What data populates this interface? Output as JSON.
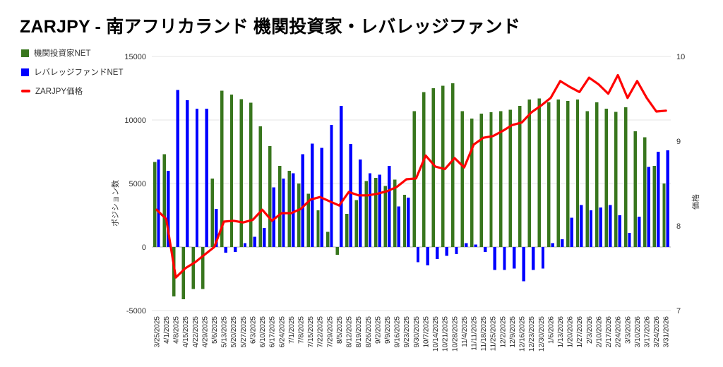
{
  "title": "ZARJPY - 南アフリカランド 機関投資家・レバレッジファンド",
  "legend": {
    "items": [
      {
        "label": "機関投資家NET",
        "color": "#38761d",
        "marker": "square"
      },
      {
        "label": "レバレッジファンドNET",
        "color": "#0000ff",
        "marker": "square"
      },
      {
        "label": "ZARJPY価格",
        "color": "#ff0000",
        "marker": "dash"
      }
    ]
  },
  "chart_data": {
    "type": "combo",
    "grid": true,
    "legend_position": "top-left",
    "categories": [
      "3/25/2025",
      "4/1/2025",
      "4/8/2025",
      "4/15/2025",
      "4/22/2025",
      "4/29/2025",
      "5/6/2025",
      "5/13/2025",
      "5/20/2025",
      "5/27/2025",
      "6/3/2025",
      "6/10/2025",
      "6/17/2025",
      "6/24/2025",
      "7/1/2025",
      "7/8/2025",
      "7/15/2025",
      "7/22/2025",
      "7/29/2025",
      "8/5/2025",
      "8/12/2025",
      "8/19/2025",
      "8/26/2025",
      "9/2/2025",
      "9/9/2025",
      "9/16/2025",
      "9/23/2025",
      "9/30/2025",
      "10/7/2025",
      "10/14/2025",
      "10/21/2025",
      "10/28/2025",
      "11/4/2025",
      "11/11/2025",
      "11/18/2025",
      "11/25/2025",
      "12/2/2025",
      "12/9/2025",
      "12/16/2025",
      "12/23/2025",
      "12/30/2025",
      "1/6/2026",
      "1/13/2026",
      "1/20/2026",
      "1/27/2026",
      "2/3/2026",
      "2/10/2026",
      "2/17/2026",
      "2/24/2026",
      "3/3/2026",
      "3/10/2026",
      "3/17/2026",
      "3/24/2026",
      "3/31/2026"
    ],
    "series": [
      {
        "name": "機関投資家NET",
        "type": "bar",
        "axis": "left",
        "color": "#38761d",
        "values": [
          6700,
          7300,
          -3900,
          -4100,
          -3300,
          -3300,
          5400,
          12300,
          12000,
          11650,
          11350,
          9500,
          7950,
          6400,
          6000,
          5000,
          4200,
          2900,
          1200,
          -600,
          2600,
          3700,
          5200,
          5450,
          4800,
          5300,
          4100,
          10700,
          12200,
          12500,
          12700,
          12900,
          10700,
          10100,
          10500,
          10600,
          10700,
          10800,
          11100,
          11600,
          11700,
          11400,
          11600,
          11500,
          11600,
          10700,
          11400,
          10900,
          10650,
          11000,
          9100,
          8650,
          6400,
          5000
        ]
      },
      {
        "name": "レバレッジファンドNET",
        "type": "bar",
        "axis": "left",
        "color": "#0000ff",
        "values": [
          6900,
          6000,
          12350,
          11550,
          10900,
          10900,
          3000,
          -450,
          -400,
          300,
          800,
          1500,
          4700,
          5400,
          5800,
          7300,
          8150,
          7800,
          9600,
          11100,
          8100,
          6900,
          5800,
          5700,
          6400,
          3200,
          3900,
          -1200,
          -1450,
          -950,
          -700,
          -550,
          300,
          200,
          -400,
          -1800,
          -1800,
          -1700,
          -2700,
          -1800,
          -1700,
          300,
          600,
          2300,
          3300,
          2900,
          3100,
          3300,
          2500,
          1100,
          2400,
          6300,
          7500,
          7600
        ]
      },
      {
        "name": "ZARJPY価格",
        "type": "line",
        "axis": "right",
        "color": "#ff0000",
        "values": [
          8.19,
          8.08,
          7.39,
          7.5,
          7.57,
          7.66,
          7.75,
          8.05,
          8.06,
          8.04,
          8.07,
          8.19,
          8.06,
          8.15,
          8.15,
          8.2,
          8.31,
          8.34,
          8.29,
          8.24,
          8.4,
          8.36,
          8.36,
          8.38,
          8.41,
          8.46,
          8.55,
          8.56,
          8.83,
          8.7,
          8.67,
          8.8,
          8.69,
          8.96,
          9.04,
          9.06,
          9.12,
          9.19,
          9.22,
          9.34,
          9.42,
          9.51,
          9.71,
          9.64,
          9.58,
          9.75,
          9.67,
          9.56,
          9.78,
          9.51,
          9.71,
          9.51,
          9.35,
          9.36
        ]
      }
    ],
    "left_axis": {
      "title": "ポジション数",
      "ticks": [
        15000,
        10000,
        5000,
        0,
        -5000
      ],
      "min": -5000,
      "max": 15000
    },
    "right_axis": {
      "title": "価格",
      "ticks": [
        10,
        9,
        8,
        7
      ],
      "min": 7,
      "max": 10
    }
  }
}
